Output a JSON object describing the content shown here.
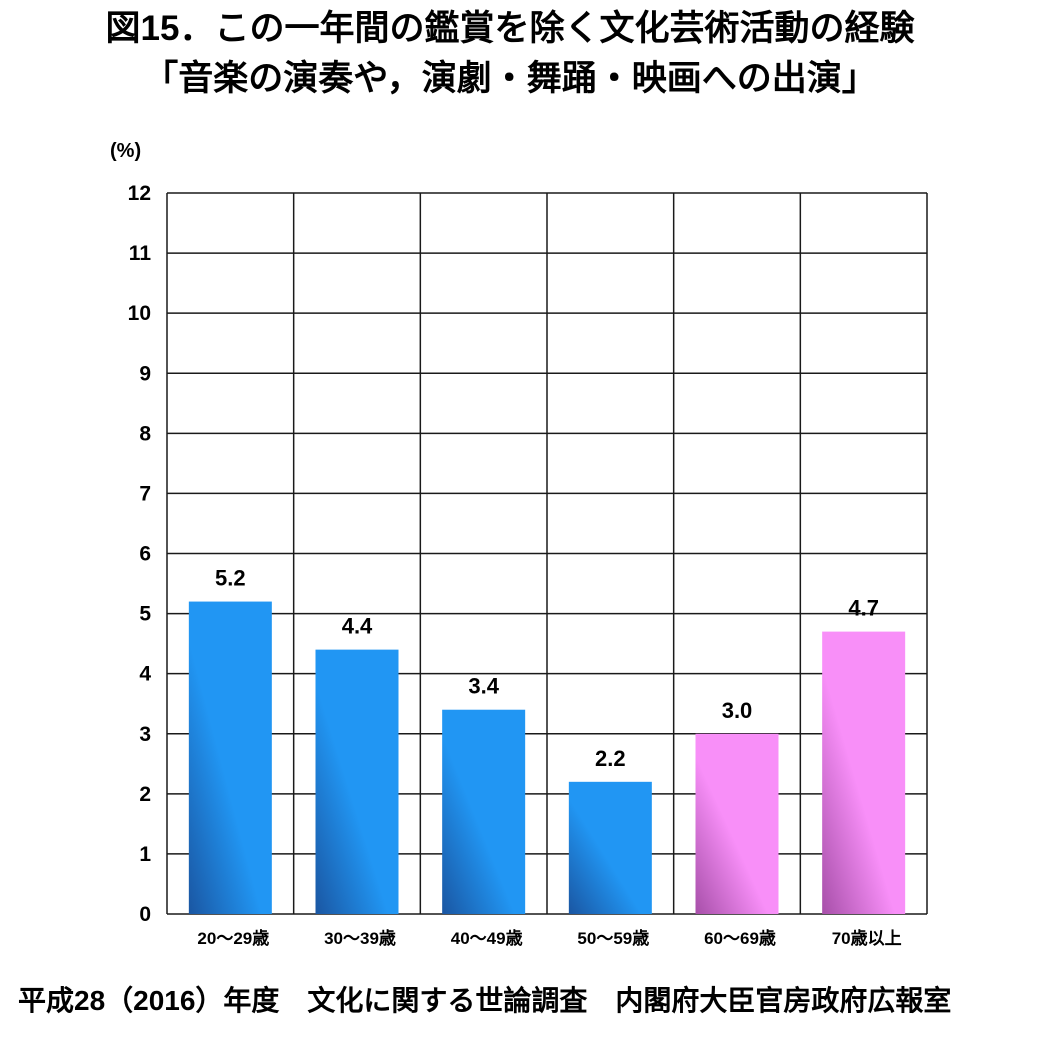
{
  "chart_data": {
    "type": "bar",
    "title": "図15．この一年間の鑑賞を除く文化芸術活動の経験",
    "subtitle": "「音楽の演奏や，演劇・舞踊・映画への出演」",
    "ylabel": "(%)",
    "categories": [
      "20～29歳",
      "30～39歳",
      "40～49歳",
      "50～59歳",
      "60～69歳",
      "70歳以上"
    ],
    "values": [
      5.2,
      4.4,
      3.4,
      2.2,
      3.0,
      4.7
    ],
    "data_labels": [
      "5.2",
      "4.4",
      "3.4",
      "2.2",
      "3.0",
      "4.7"
    ],
    "bar_colors": [
      "blue",
      "blue",
      "blue",
      "blue",
      "pink",
      "pink"
    ],
    "ylim": [
      0,
      12
    ],
    "yticks": [
      0,
      1,
      2,
      3,
      4,
      5,
      6,
      7,
      8,
      9,
      10,
      11,
      12
    ],
    "grid": true
  },
  "palette": {
    "blue": {
      "dark": "#1a56a2",
      "light": "#2196f3"
    },
    "pink": {
      "dark": "#a74fa9",
      "light": "#f88ff8"
    },
    "grid": "#1a1a1a"
  },
  "source": "平成28（2016）年度　文化に関する世論調査　内閣府大臣官房政府広報室"
}
